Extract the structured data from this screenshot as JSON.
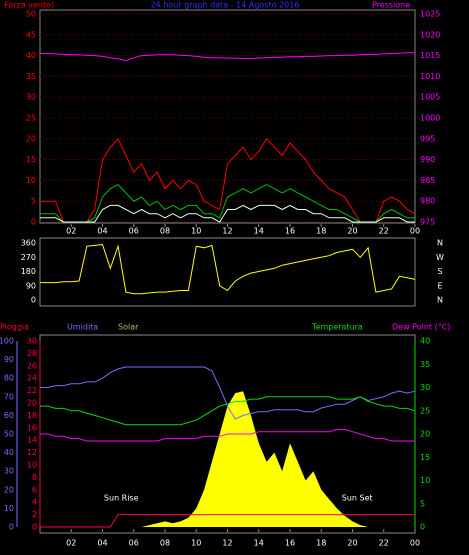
{
  "chart_data": [
    {
      "type": "line",
      "title": "24 hour graph data - 14 Agosto 2016",
      "ylabel": "Forza vento)",
      "x": [
        0,
        0.5,
        1,
        1.5,
        2,
        2.5,
        3,
        3.5,
        4,
        4.5,
        5,
        5.5,
        6,
        6.5,
        7,
        7.5,
        8,
        8.5,
        9,
        9.5,
        10,
        10.5,
        11,
        11.5,
        12,
        12.5,
        13,
        13.5,
        14,
        14.5,
        15,
        15.5,
        16,
        16.5,
        17,
        17.5,
        18,
        18.5,
        19,
        19.5,
        20,
        20.5,
        21,
        21.5,
        22,
        22.5,
        23,
        23.5,
        24
      ],
      "xlim": [
        0,
        24
      ],
      "xticks": [
        {
          "value": 2,
          "label": "02"
        },
        {
          "value": 4,
          "label": "04"
        },
        {
          "value": 6,
          "label": "06"
        },
        {
          "value": 8,
          "label": "08"
        },
        {
          "value": 10,
          "label": "10"
        },
        12,
        14,
        16,
        18,
        20,
        22,
        {
          "value": 24,
          "label": "00"
        }
      ],
      "ylim": [
        0,
        50
      ],
      "yticks": [
        0,
        5,
        10,
        15,
        20,
        25,
        30,
        35,
        40,
        45,
        50
      ],
      "y2lim": [
        975,
        1025
      ],
      "y2ticks": [
        975,
        980,
        985,
        990,
        995,
        1000,
        1005,
        1010,
        1015,
        1020,
        1025
      ],
      "grid": true,
      "series": [
        {
          "color": "#ff0000",
          "values": [
            5,
            5,
            5,
            0,
            0,
            0,
            0,
            3,
            15,
            18,
            20,
            16,
            12,
            14,
            10,
            12,
            8,
            10,
            8,
            10,
            9,
            5,
            4,
            3,
            14,
            16,
            18,
            15,
            17,
            20,
            18,
            16,
            19,
            17,
            15,
            12,
            10,
            8,
            7,
            6,
            3,
            0,
            0,
            0,
            5,
            6,
            5,
            3,
            2
          ]
        },
        {
          "color": "#00c000",
          "values": [
            2,
            2,
            2,
            0,
            0,
            0,
            0,
            1,
            6,
            8,
            9,
            7,
            5,
            6,
            4,
            5,
            3,
            4,
            3,
            4,
            4,
            2,
            2,
            1,
            6,
            7,
            8,
            7,
            8,
            9,
            8,
            7,
            8,
            7,
            6,
            5,
            4,
            3,
            3,
            2,
            1,
            0,
            0,
            0,
            2,
            3,
            2,
            1,
            1
          ]
        },
        {
          "color": "#e8ffe8",
          "values": [
            1,
            1,
            1,
            0,
            0,
            0,
            0,
            0,
            3,
            4,
            4,
            3,
            2,
            3,
            2,
            2,
            1,
            2,
            1,
            2,
            2,
            1,
            1,
            0,
            3,
            3,
            4,
            3,
            4,
            4,
            4,
            3,
            4,
            3,
            3,
            2,
            2,
            1,
            1,
            1,
            0,
            0,
            0,
            0,
            1,
            1,
            1,
            0,
            0
          ]
        },
        {
          "name": "Pressione",
          "color": "#ff00ff",
          "axis": "y2",
          "values": [
            1015.5,
            1015.5,
            1015.4,
            1015.3,
            1015.2,
            1015.2,
            1015.1,
            1015,
            1014.8,
            1014.5,
            1014.2,
            1013.8,
            1014.5,
            1015,
            1015.1,
            1015.2,
            1015.2,
            1015.2,
            1015.1,
            1015,
            1014.8,
            1014.6,
            1014.5,
            1014.5,
            1014.4,
            1014.4,
            1014.3,
            1014.3,
            1014.4,
            1014.5,
            1014.6,
            1014.6,
            1014.7,
            1014.7,
            1014.8,
            1014.8,
            1014.9,
            1015,
            1015,
            1015.1,
            1015.1,
            1015.2,
            1015.3,
            1015.3,
            1015.4,
            1015.5,
            1015.6,
            1015.7,
            1015.7
          ]
        }
      ]
    },
    {
      "type": "line",
      "x": [
        0,
        0.5,
        1,
        1.5,
        2,
        2.5,
        3,
        3.5,
        4,
        4.5,
        5,
        5.5,
        6,
        6.5,
        7,
        7.5,
        8,
        8.5,
        9,
        9.5,
        10,
        10.5,
        11,
        11.5,
        12,
        12.5,
        13,
        13.5,
        14,
        14.5,
        15,
        15.5,
        16,
        16.5,
        17,
        17.5,
        18,
        18.5,
        19,
        19.5,
        20,
        20.5,
        21,
        21.5,
        22,
        22.5,
        23,
        23.5,
        24
      ],
      "xlim": [
        0,
        24
      ],
      "ylim": [
        0,
        360
      ],
      "yticks": [
        0,
        90,
        180,
        270,
        360
      ],
      "y2lim": [
        0,
        360
      ],
      "y2ticks": [
        {
          "value": 0,
          "label": "N"
        },
        {
          "value": 90,
          "label": "E"
        },
        {
          "value": 180,
          "label": "S"
        },
        {
          "value": 270,
          "label": "W"
        },
        {
          "value": 360,
          "label": "N"
        }
      ],
      "series": [
        {
          "color": "#ffff00",
          "values": [
            110,
            110,
            110,
            115,
            115,
            120,
            340,
            345,
            350,
            200,
            340,
            50,
            40,
            40,
            45,
            50,
            50,
            55,
            60,
            60,
            340,
            330,
            345,
            90,
            60,
            120,
            150,
            170,
            180,
            190,
            200,
            220,
            230,
            240,
            250,
            260,
            270,
            280,
            300,
            310,
            320,
            270,
            330,
            50,
            60,
            70,
            150,
            140,
            130
          ]
        }
      ]
    },
    {
      "type": "line",
      "x": [
        0,
        0.5,
        1,
        1.5,
        2,
        2.5,
        3,
        3.5,
        4,
        4.5,
        5,
        5.5,
        6,
        6.5,
        7,
        7.5,
        8,
        8.5,
        9,
        9.5,
        10,
        10.5,
        11,
        11.5,
        12,
        12.5,
        13,
        13.5,
        14,
        14.5,
        15,
        15.5,
        16,
        16.5,
        17,
        17.5,
        18,
        18.5,
        19,
        19.5,
        20,
        20.5,
        21,
        21.5,
        22,
        22.5,
        23,
        23.5,
        24
      ],
      "xlim": [
        0,
        24
      ],
      "xticks": [
        {
          "value": 2,
          "label": "02"
        },
        {
          "value": 4,
          "label": "04"
        },
        {
          "value": 6,
          "label": "06"
        },
        {
          "value": 8,
          "label": "08"
        },
        {
          "value": 10,
          "label": "10"
        },
        12,
        14,
        16,
        18,
        20,
        22,
        {
          "value": 24,
          "label": "00"
        }
      ],
      "ylim": [
        0,
        100
      ],
      "yticks": [
        0,
        10,
        20,
        30,
        40,
        50,
        60,
        70,
        80,
        90,
        100
      ],
      "y2lim": [
        0,
        40
      ],
      "y2ticks": [
        0,
        5,
        10,
        15,
        20,
        25,
        30,
        35,
        40
      ],
      "y3lim": [
        0,
        30
      ],
      "y3ticks": [
        0,
        2,
        4,
        6,
        8,
        10,
        12,
        14,
        16,
        18,
        20,
        22,
        24,
        26,
        28,
        30
      ],
      "annotations": [
        "Sun Rise",
        "Sun Set"
      ],
      "series": [
        {
          "name": "Solar",
          "color": "#ffff00",
          "area": true,
          "values": [
            0,
            0,
            0,
            0,
            0,
            0,
            0,
            0,
            0,
            0,
            0,
            0,
            0,
            0,
            1,
            2,
            3,
            2,
            3,
            5,
            10,
            20,
            35,
            50,
            65,
            72,
            73,
            60,
            45,
            35,
            40,
            30,
            45,
            35,
            25,
            30,
            20,
            15,
            10,
            6,
            3,
            1,
            0,
            0,
            0,
            0,
            0,
            0,
            0
          ]
        },
        {
          "name": "Pioggia",
          "color": "#ff0040",
          "axis": "y3",
          "values": [
            0,
            0,
            0,
            0,
            0,
            0,
            0,
            0,
            0,
            0,
            2,
            2,
            2,
            2,
            2,
            2,
            2,
            2,
            2,
            2,
            2,
            2,
            2,
            2,
            2,
            2,
            2,
            2,
            2,
            2,
            2,
            2,
            2,
            2,
            2,
            2,
            2,
            2,
            2,
            2,
            2,
            2,
            2,
            2,
            2,
            2,
            2,
            2,
            2
          ]
        },
        {
          "name": "Umidita",
          "color": "#7070ff",
          "values": [
            75,
            75,
            76,
            76,
            77,
            77,
            78,
            78,
            80,
            83,
            85,
            86,
            86,
            86,
            86,
            86,
            86,
            86,
            86,
            86,
            86,
            86,
            84,
            75,
            65,
            58,
            60,
            61,
            62,
            62,
            63,
            63,
            63,
            63,
            62,
            62,
            64,
            65,
            66,
            66,
            68,
            70,
            68,
            69,
            70,
            72,
            73,
            72,
            73
          ]
        },
        {
          "name": "Temperatura",
          "color": "#00e000",
          "axis": "y2",
          "values": [
            26,
            26,
            25.5,
            25.5,
            25,
            25,
            24.5,
            24,
            23.5,
            23,
            22.5,
            22,
            22,
            22,
            22,
            22,
            22,
            22,
            22,
            22.5,
            23,
            24,
            25,
            26,
            26.5,
            27,
            27,
            27.5,
            27.5,
            28,
            28,
            28,
            28,
            28,
            28,
            28,
            28,
            28,
            27.5,
            27.5,
            27.5,
            28,
            27,
            26.5,
            26,
            26,
            25.5,
            25.5,
            25
          ]
        },
        {
          "name": "Dew Point (°C)",
          "color": "#ff00ff",
          "axis": "y2",
          "values": [
            20,
            20,
            19.5,
            19.5,
            19,
            19,
            18.5,
            18.5,
            18.5,
            18.5,
            18.5,
            18.5,
            18.5,
            18.5,
            18.5,
            18.5,
            19,
            19,
            19,
            19,
            19,
            19.5,
            19.5,
            19.5,
            20,
            20,
            20,
            20,
            20.5,
            20.5,
            20.5,
            20.5,
            20.5,
            20.5,
            20.5,
            20.5,
            20.5,
            20.5,
            21,
            21,
            20.5,
            20,
            19.5,
            19,
            19,
            18.5,
            18.5,
            18.5,
            18.5
          ]
        }
      ]
    }
  ]
}
